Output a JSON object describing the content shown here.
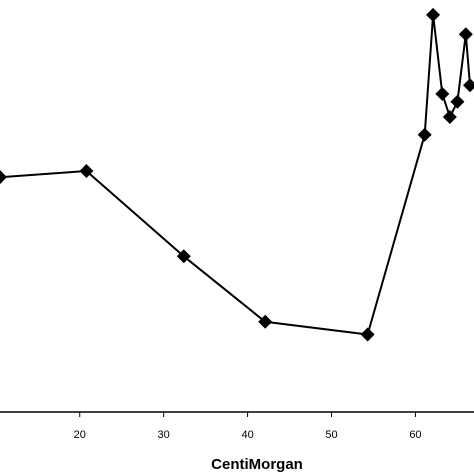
{
  "chart_data": {
    "type": "line",
    "title": "",
    "xlabel": "CentiMorgan",
    "ylabel": "",
    "xticks": [
      20,
      30,
      40,
      50,
      60
    ],
    "xlim": [
      10.5,
      66.5
    ],
    "ylim": [
      0,
      1
    ],
    "grid": false,
    "legend": "none",
    "colors": {
      "line": "#000000",
      "marker": "#000000",
      "axis": "#000000"
    },
    "series": [
      {
        "x": [
          10.5,
          20.8,
          32.4,
          42.1,
          54.3,
          61.1,
          62.1,
          63.2,
          64.1,
          65.0,
          66.0,
          66.5
        ],
        "y": [
          0.57,
          0.585,
          0.378,
          0.219,
          0.188,
          0.673,
          0.964,
          0.772,
          0.716,
          0.753,
          0.917,
          0.793
        ]
      }
    ]
  }
}
